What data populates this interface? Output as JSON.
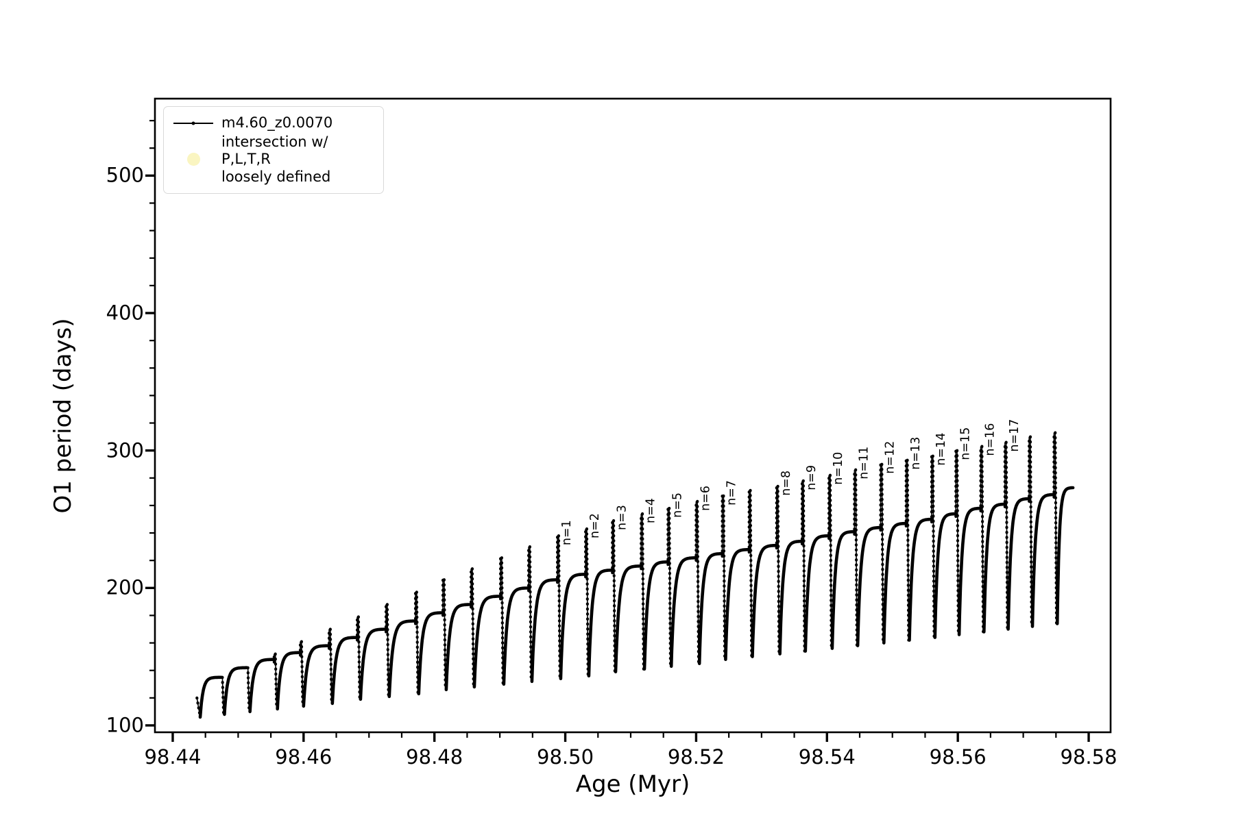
{
  "page": {
    "background": "#ffffff"
  },
  "axes": {
    "xlabel": "Age (Myr)",
    "ylabel": "O1 period (days)",
    "xlim": [
      98.43728,
      98.58335
    ],
    "ylim": [
      95,
      556
    ],
    "x_major_ticks": [
      98.44,
      98.46,
      98.48,
      98.5,
      98.52,
      98.54,
      98.56,
      98.58
    ],
    "x_tick_decimals": 2,
    "x_minor_step": 0.005,
    "y_major_ticks": [
      100,
      200,
      300,
      400,
      500
    ],
    "y_minor_step": 20,
    "spine_color": "#000000"
  },
  "legend": {
    "entries": [
      {
        "marker": "line-dot",
        "color": "#000000",
        "label": "m4.60_z0.0070"
      },
      {
        "marker": "circle",
        "color": "#faf5c1",
        "label": "intersection w/ P,L,T,R\nloosely defined"
      }
    ]
  },
  "chart_data": {
    "type": "line",
    "series_name": "m4.60_z0.0070",
    "title": "",
    "xlabel": "Age (Myr)",
    "ylabel": "O1 period (days)",
    "line_color": "#000000",
    "grid": false,
    "legend_position": "upper left",
    "description": "Relaxation-oscillation sawtooth: each cycle rises steeply from a minimum, saturates to a plateau, ends in a tall narrow upward spike, then plunges to the next minimum. Spikes labeled n=1..17.",
    "start_point": {
      "x": 98.4437,
      "y": 120
    },
    "cycles": [
      {
        "x": 98.4474,
        "min": 106,
        "plateau": 135,
        "spike": null,
        "label": null
      },
      {
        "x": 98.4513,
        "min": 108,
        "plateau": 142,
        "spike": null,
        "label": null
      },
      {
        "x": 98.4555,
        "min": 110,
        "plateau": 148,
        "spike": 152,
        "label": null
      },
      {
        "x": 98.4595,
        "min": 112,
        "plateau": 153,
        "spike": 161,
        "label": null
      },
      {
        "x": 98.4639,
        "min": 114,
        "plateau": 158,
        "spike": 170,
        "label": null
      },
      {
        "x": 98.4682,
        "min": 116,
        "plateau": 164,
        "spike": 179,
        "label": null
      },
      {
        "x": 98.4726,
        "min": 119,
        "plateau": 170,
        "spike": 188,
        "label": null
      },
      {
        "x": 98.4771,
        "min": 121,
        "plateau": 176,
        "spike": 197,
        "label": null
      },
      {
        "x": 98.4813,
        "min": 123,
        "plateau": 182,
        "spike": 206,
        "label": null
      },
      {
        "x": 98.4856,
        "min": 126,
        "plateau": 188,
        "spike": 214,
        "label": null
      },
      {
        "x": 98.4901,
        "min": 128,
        "plateau": 194,
        "spike": 222,
        "label": null
      },
      {
        "x": 98.4944,
        "min": 130,
        "plateau": 200,
        "spike": 230,
        "label": null
      },
      {
        "x": 98.4988,
        "min": 132,
        "plateau": 206,
        "spike": 238,
        "label": "n=1"
      },
      {
        "x": 98.5031,
        "min": 134,
        "plateau": 210,
        "spike": 243,
        "label": "n=2"
      },
      {
        "x": 98.5072,
        "min": 136,
        "plateau": 213,
        "spike": 249,
        "label": "n=3"
      },
      {
        "x": 98.5116,
        "min": 139,
        "plateau": 216,
        "spike": 254,
        "label": "n=4"
      },
      {
        "x": 98.5157,
        "min": 141,
        "plateau": 219,
        "spike": 258,
        "label": "n=5"
      },
      {
        "x": 98.52,
        "min": 143,
        "plateau": 222,
        "spike": 263,
        "label": "n=6"
      },
      {
        "x": 98.524,
        "min": 145,
        "plateau": 225,
        "spike": 267,
        "label": "n=7"
      },
      {
        "x": 98.5281,
        "min": 148,
        "plateau": 228,
        "spike": 271,
        "label": null
      },
      {
        "x": 98.5323,
        "min": 150,
        "plateau": 231,
        "spike": 274,
        "label": "n=8"
      },
      {
        "x": 98.5362,
        "min": 152,
        "plateau": 234,
        "spike": 278,
        "label": "n=9"
      },
      {
        "x": 98.5403,
        "min": 154,
        "plateau": 238,
        "spike": 282,
        "label": "n=10"
      },
      {
        "x": 98.5442,
        "min": 156,
        "plateau": 241,
        "spike": 286,
        "label": "n=11"
      },
      {
        "x": 98.5482,
        "min": 158,
        "plateau": 244,
        "spike": 290,
        "label": "n=12"
      },
      {
        "x": 98.5521,
        "min": 160,
        "plateau": 247,
        "spike": 293,
        "label": "n=13"
      },
      {
        "x": 98.556,
        "min": 162,
        "plateau": 250,
        "spike": 296,
        "label": "n=14"
      },
      {
        "x": 98.5597,
        "min": 164,
        "plateau": 254,
        "spike": 300,
        "label": "n=15"
      },
      {
        "x": 98.5635,
        "min": 166,
        "plateau": 258,
        "spike": 303,
        "label": "n=16"
      },
      {
        "x": 98.5672,
        "min": 168,
        "plateau": 261,
        "spike": 306,
        "label": "n=17"
      },
      {
        "x": 98.5709,
        "min": 170,
        "plateau": 265,
        "spike": 310,
        "label": null
      },
      {
        "x": 98.5747,
        "min": 172,
        "plateau": 268,
        "spike": 313,
        "label": null
      }
    ],
    "final_arc": {
      "min": 174,
      "x_end": 98.5776,
      "plateau": 273
    }
  }
}
